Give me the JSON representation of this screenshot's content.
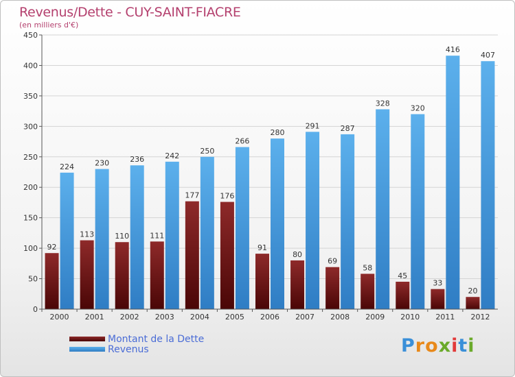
{
  "chart_data": {
    "type": "bar",
    "title": "Revenus/Dette - CUY-SAINT-FIACRE",
    "subtitle": "(en milliers d'€)",
    "categories": [
      "2000",
      "2001",
      "2002",
      "2003",
      "2004",
      "2005",
      "2006",
      "2007",
      "2008",
      "2009",
      "2010",
      "2011",
      "2012"
    ],
    "series": [
      {
        "name": "Montant de la Dette",
        "color": "#7a1414",
        "values": [
          92,
          113,
          110,
          111,
          177,
          176,
          91,
          80,
          69,
          58,
          45,
          33,
          20
        ]
      },
      {
        "name": "Revenus",
        "color": "#4a9fe0",
        "values": [
          224,
          230,
          236,
          242,
          250,
          266,
          280,
          291,
          287,
          328,
          320,
          416,
          407
        ]
      }
    ],
    "ylim": [
      0,
      450
    ],
    "yticks": [
      0,
      50,
      100,
      150,
      200,
      250,
      300,
      350,
      400,
      450
    ],
    "grid": true,
    "xlabel": "",
    "ylabel": ""
  },
  "logo": {
    "letters": [
      {
        "char": "P",
        "color": "#3a8fd8"
      },
      {
        "char": "r",
        "color": "#e8891a"
      },
      {
        "char": "o",
        "color": "#e8891a"
      },
      {
        "char": "x",
        "color": "#6aaa2a"
      },
      {
        "char": "i",
        "color": "#e23a3a"
      },
      {
        "char": "t",
        "color": "#3a8fd8"
      },
      {
        "char": "i",
        "color": "#6aaa2a"
      }
    ]
  }
}
